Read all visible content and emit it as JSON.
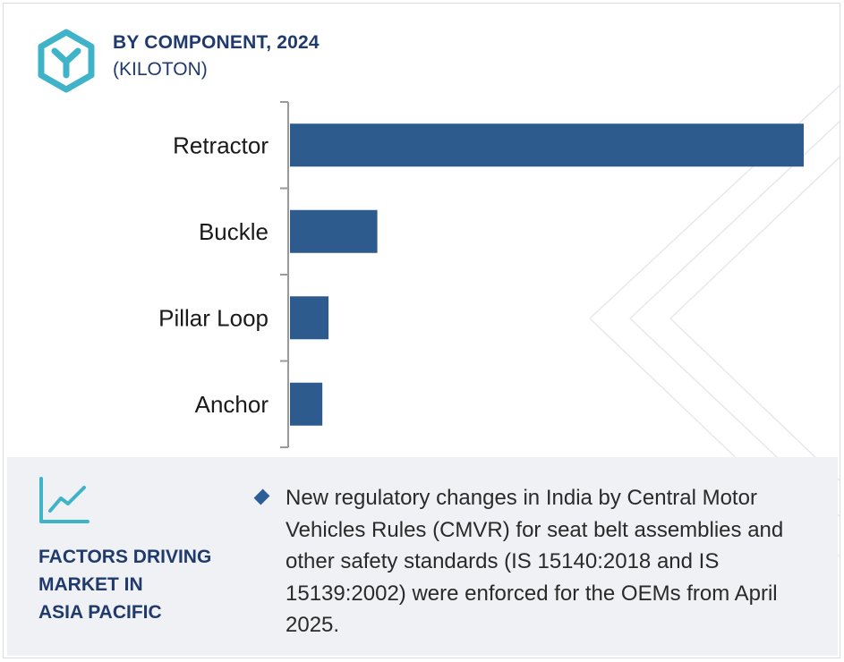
{
  "header": {
    "title": "BY COMPONENT, 2024",
    "subtitle": "(KILOTON)"
  },
  "colors": {
    "bar": "#2d5b8e",
    "accent": "#3fb3c8",
    "title": "#1f3a6b",
    "axis": "#9a9a9a"
  },
  "icons": {
    "logo": "hexagon-y-logo-icon",
    "trend": "line-chart-trend-icon",
    "bullet": "diamond-bullet-icon"
  },
  "chart_data": {
    "type": "bar",
    "orientation": "horizontal",
    "title": "BY COMPONENT, 2024",
    "subtitle": "(KILOTON)",
    "categories": [
      "Retractor",
      "Buckle",
      "Pillar Loop",
      "Anchor"
    ],
    "values": [
      100,
      17,
      7.5,
      6.3
    ],
    "xlim": [
      0,
      100
    ],
    "grid": false,
    "legend": "none"
  },
  "factors": {
    "title": "FACTORS DRIVING MARKET IN ASIA PACIFIC",
    "title_lines": [
      "FACTORS DRIVING",
      "MARKET IN",
      "ASIA PACIFIC"
    ],
    "bullets": [
      "New regulatory changes in India by Central Motor Vehicles Rules (CMVR) for seat belt assemblies and other safety standards (IS 15140:2018 and IS 15139:2002) were enforced for the OEMs from April 2025."
    ]
  }
}
